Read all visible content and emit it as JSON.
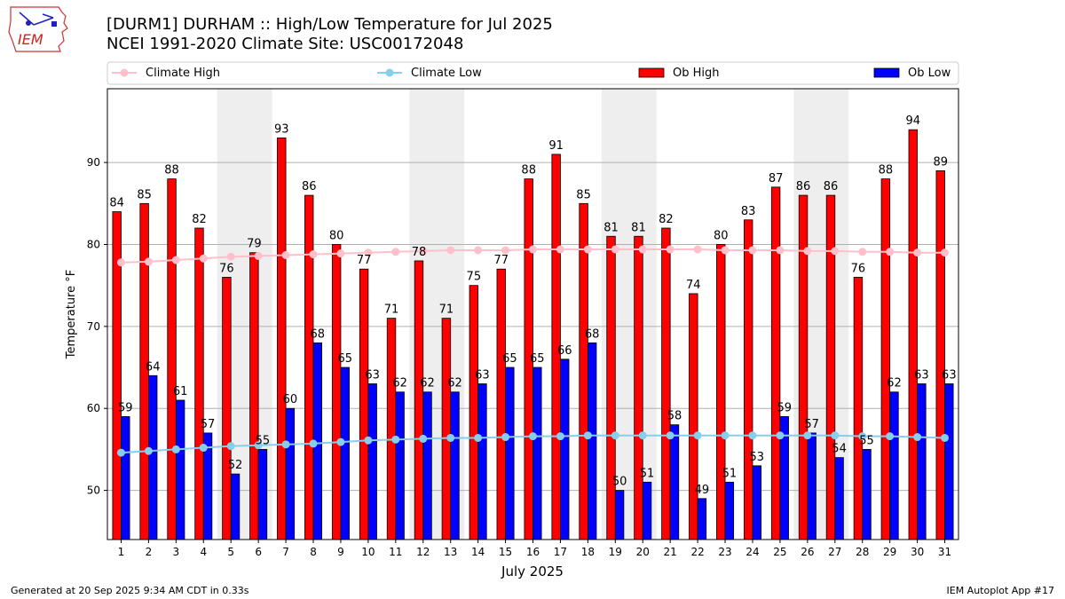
{
  "header": {
    "title_line1": "[DURM1] DURHAM :: High/Low Temperature for Jul 2025",
    "title_line2": "NCEI 1991-2020 Climate Site: USC00172048",
    "logo_text": "IEM"
  },
  "footer": {
    "generated": "Generated at 20 Sep 2025 9:34 AM CDT in 0.33s",
    "app": "IEM Autoplot App #17"
  },
  "colors": {
    "ob_high": "#ff0000",
    "ob_low": "#0000ff",
    "climate_high": "#ffc0cb",
    "climate_low": "#87ceeb",
    "weekend_shade": "#eeeeee"
  },
  "chart_data": {
    "type": "bar",
    "xlabel": "July 2025",
    "ylabel": "Temperature °F",
    "ylim": [
      44,
      99
    ],
    "yticks": [
      50,
      60,
      70,
      80,
      90
    ],
    "grid": "horizontal",
    "legend_position": "top",
    "categories": [
      "1",
      "2",
      "3",
      "4",
      "5",
      "6",
      "7",
      "8",
      "9",
      "10",
      "11",
      "12",
      "13",
      "14",
      "15",
      "16",
      "17",
      "18",
      "19",
      "20",
      "21",
      "22",
      "23",
      "24",
      "25",
      "26",
      "27",
      "28",
      "29",
      "30",
      "31"
    ],
    "shaded_days": [
      [
        5,
        6
      ],
      [
        12,
        13
      ],
      [
        19,
        20
      ],
      [
        26,
        27
      ]
    ],
    "series": [
      {
        "name": "Ob High",
        "kind": "bar",
        "values": [
          84,
          85,
          88,
          82,
          76,
          79,
          93,
          86,
          80,
          77,
          71,
          78,
          71,
          75,
          77,
          88,
          91,
          85,
          81,
          81,
          82,
          74,
          80,
          83,
          87,
          86,
          86,
          76,
          88,
          94,
          89
        ]
      },
      {
        "name": "Ob Low",
        "kind": "bar",
        "values": [
          59,
          64,
          61,
          57,
          52,
          55,
          60,
          68,
          65,
          63,
          62,
          62,
          62,
          63,
          65,
          65,
          66,
          68,
          50,
          51,
          58,
          49,
          51,
          53,
          59,
          57,
          54,
          55,
          62,
          63,
          63
        ]
      },
      {
        "name": "Climate High",
        "kind": "line",
        "values": [
          77.8,
          77.9,
          78.1,
          78.3,
          78.5,
          78.6,
          78.7,
          78.8,
          78.9,
          79.0,
          79.1,
          79.2,
          79.3,
          79.3,
          79.3,
          79.4,
          79.4,
          79.4,
          79.4,
          79.4,
          79.4,
          79.4,
          79.3,
          79.3,
          79.3,
          79.2,
          79.2,
          79.1,
          79.1,
          79.0,
          79.0
        ]
      },
      {
        "name": "Climate Low",
        "kind": "line",
        "values": [
          54.6,
          54.8,
          55.0,
          55.2,
          55.4,
          55.5,
          55.6,
          55.7,
          55.9,
          56.1,
          56.2,
          56.3,
          56.4,
          56.4,
          56.5,
          56.6,
          56.6,
          56.7,
          56.7,
          56.7,
          56.7,
          56.7,
          56.7,
          56.7,
          56.7,
          56.7,
          56.7,
          56.6,
          56.6,
          56.5,
          56.4
        ]
      }
    ]
  }
}
